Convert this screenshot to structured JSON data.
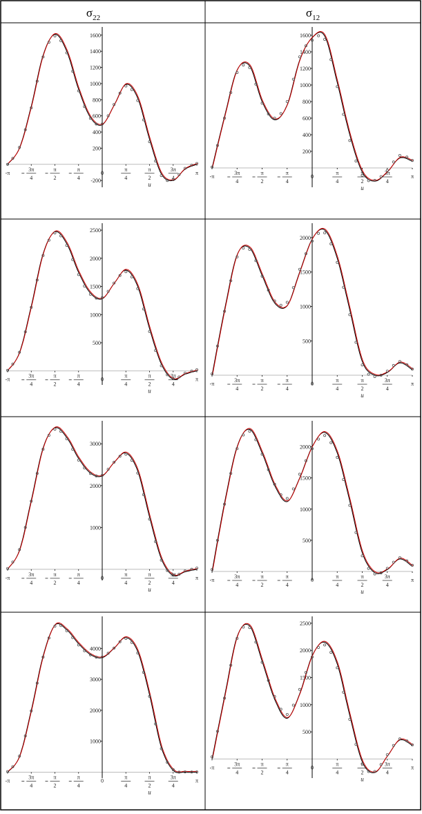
{
  "table": {
    "headers": [
      {
        "main": "σ",
        "sub": "22"
      },
      {
        "main": "σ",
        "sub": "12"
      }
    ]
  },
  "colors": {
    "model_curve": "#000000",
    "fit_curve": "#cc0000",
    "markers": "#555555",
    "axis": "#000000",
    "zero_line": "#bbbbbb",
    "border": "#000000"
  },
  "chart_data": [
    {
      "id": "r1-s22",
      "type": "line",
      "column": "σ22",
      "x_label": "u",
      "x_range": [
        -3.1416,
        3.1416
      ],
      "x_ticks": [
        {
          "v": -3.1416,
          "n": "-π"
        },
        {
          "v": -2.3562,
          "n": "3π",
          "d": "4",
          "neg": true
        },
        {
          "v": -1.5708,
          "n": "π",
          "d": "2",
          "neg": true
        },
        {
          "v": -0.7854,
          "n": "π",
          "d": "4",
          "neg": true
        },
        {
          "v": 0,
          "n": "0"
        },
        {
          "v": 0.7854,
          "n": "π",
          "d": "4"
        },
        {
          "v": 1.5708,
          "n": "π",
          "d": "2"
        },
        {
          "v": 2.3562,
          "n": "3π",
          "d": "4"
        },
        {
          "v": 3.1416,
          "n": "π"
        }
      ],
      "y_range": [
        -250,
        1650
      ],
      "y_ticks": [
        -200,
        200,
        400,
        600,
        800,
        1000,
        1200,
        1400,
        1600
      ],
      "x": [
        -3.1416,
        -2.7489,
        -2.3562,
        -1.9635,
        -1.5708,
        -1.1781,
        -0.7854,
        -0.3927,
        0,
        0.3927,
        0.7854,
        1.1781,
        1.5708,
        1.9635,
        2.3562,
        2.7489,
        3.1416
      ],
      "y": [
        0,
        200,
        720,
        1350,
        1610,
        1400,
        930,
        580,
        490,
        730,
        990,
        820,
        310,
        -120,
        -200,
        -60,
        0
      ],
      "markers": [
        0,
        210,
        700,
        1330,
        1590,
        1380,
        910,
        570,
        500,
        740,
        970,
        790,
        280,
        -140,
        -190,
        -50,
        10
      ]
    },
    {
      "id": "r1-s12",
      "type": "line",
      "column": "σ12",
      "x_label": "u",
      "x_range": [
        -3.1416,
        3.1416
      ],
      "x_ticks": [
        {
          "v": -3.1416,
          "n": "-π"
        },
        {
          "v": -2.3562,
          "n": "3π",
          "d": "4",
          "neg": true
        },
        {
          "v": -1.5708,
          "n": "π",
          "d": "2",
          "neg": true
        },
        {
          "v": -0.7854,
          "n": "π",
          "d": "4",
          "neg": true
        },
        {
          "v": 0,
          "n": "0"
        },
        {
          "v": 0.7854,
          "n": "π",
          "d": "4"
        },
        {
          "v": 1.5708,
          "n": "π",
          "d": "2"
        },
        {
          "v": 2.3562,
          "n": "3π",
          "d": "4"
        },
        {
          "v": 3.1416,
          "n": "π"
        }
      ],
      "y_range": [
        -200,
        1650
      ],
      "y_ticks": [
        200,
        400,
        600,
        800,
        1000,
        1200,
        1400,
        1600
      ],
      "x": [
        -3.1416,
        -2.7489,
        -2.3562,
        -1.9635,
        -1.5708,
        -1.1781,
        -0.7854,
        -0.3927,
        0,
        0.3927,
        0.7854,
        1.1781,
        1.5708,
        1.9635,
        2.3562,
        2.7489,
        3.1416
      ],
      "y": [
        0,
        620,
        1180,
        1230,
        800,
        580,
        760,
        1300,
        1570,
        1590,
        1030,
        400,
        -50,
        -160,
        -50,
        120,
        80
      ],
      "markers": [
        10,
        600,
        1150,
        1210,
        780,
        600,
        800,
        1340,
        1540,
        1550,
        980,
        330,
        -90,
        -150,
        -30,
        150,
        90
      ]
    },
    {
      "id": "r2-s22",
      "type": "line",
      "column": "σ22",
      "x_label": "u",
      "x_range": [
        -3.1416,
        3.1416
      ],
      "x_ticks": [
        {
          "v": -3.1416,
          "n": "-π"
        },
        {
          "v": -2.3562,
          "n": "3π",
          "d": "4",
          "neg": true
        },
        {
          "v": -1.5708,
          "n": "π",
          "d": "2",
          "neg": true
        },
        {
          "v": -0.7854,
          "n": "π",
          "d": "4",
          "neg": true
        },
        {
          "v": 0,
          "n": "0"
        },
        {
          "v": 0.7854,
          "n": "π",
          "d": "4"
        },
        {
          "v": 1.5708,
          "n": "π",
          "d": "2"
        },
        {
          "v": 2.3562,
          "n": "3π",
          "d": "4"
        },
        {
          "v": 3.1416,
          "n": "π"
        }
      ],
      "y_range": [
        -200,
        2550
      ],
      "y_ticks": [
        500,
        1000,
        1500,
        2000,
        2500
      ],
      "x": [
        -3.1416,
        -2.7489,
        -2.3562,
        -1.9635,
        -1.5708,
        -1.1781,
        -0.7854,
        -0.3927,
        0,
        0.3927,
        0.7854,
        1.1781,
        1.5708,
        1.9635,
        2.3562,
        2.7489,
        3.1416
      ],
      "y": [
        0,
        320,
        1150,
        2080,
        2470,
        2260,
        1750,
        1380,
        1280,
        1550,
        1790,
        1500,
        750,
        120,
        -150,
        -60,
        0
      ],
      "markers": [
        10,
        330,
        1130,
        2050,
        2450,
        2230,
        1710,
        1360,
        1300,
        1560,
        1760,
        1460,
        700,
        90,
        -140,
        -40,
        20
      ]
    },
    {
      "id": "r2-s12",
      "type": "line",
      "column": "σ12",
      "x_label": "u",
      "x_range": [
        -3.1416,
        3.1416
      ],
      "x_ticks": [
        {
          "v": -3.1416,
          "n": "-π"
        },
        {
          "v": -2.3562,
          "n": "3π",
          "d": "4",
          "neg": true
        },
        {
          "v": -1.5708,
          "n": "π",
          "d": "2",
          "neg": true
        },
        {
          "v": -0.7854,
          "n": "π",
          "d": "4",
          "neg": true
        },
        {
          "v": 0,
          "n": "0"
        },
        {
          "v": 0.7854,
          "n": "π",
          "d": "4"
        },
        {
          "v": 1.5708,
          "n": "π",
          "d": "2"
        },
        {
          "v": 2.3562,
          "n": "3π",
          "d": "4"
        },
        {
          "v": 3.1416,
          "n": "π"
        }
      ],
      "y_range": [
        -100,
        2150
      ],
      "y_ticks": [
        500,
        1000,
        1500,
        2000
      ],
      "x": [
        -3.1416,
        -2.7489,
        -2.3562,
        -1.9635,
        -1.5708,
        -1.1781,
        -0.7854,
        -0.3927,
        0,
        0.3927,
        0.7854,
        1.1781,
        1.5708,
        1.9635,
        2.3562,
        2.7489,
        3.1416
      ],
      "y": [
        0,
        950,
        1750,
        1850,
        1450,
        1050,
        1010,
        1500,
        1980,
        2110,
        1700,
        950,
        200,
        0,
        40,
        180,
        80
      ],
      "markers": [
        20,
        930,
        1720,
        1830,
        1440,
        1080,
        1060,
        1540,
        1950,
        2070,
        1640,
        880,
        150,
        -20,
        60,
        200,
        90
      ]
    },
    {
      "id": "r3-s22",
      "type": "line",
      "column": "σ22",
      "x_label": "u",
      "x_range": [
        -3.1416,
        3.1416
      ],
      "x_ticks": [
        {
          "v": -3.1416,
          "n": "-π"
        },
        {
          "v": -2.3562,
          "n": "3π",
          "d": "4",
          "neg": true
        },
        {
          "v": -1.5708,
          "n": "π",
          "d": "2",
          "neg": true
        },
        {
          "v": -0.7854,
          "n": "π",
          "d": "4",
          "neg": true
        },
        {
          "v": 0,
          "n": "0"
        },
        {
          "v": 0.7854,
          "n": "π",
          "d": "4"
        },
        {
          "v": 1.5708,
          "n": "π",
          "d": "2"
        },
        {
          "v": 2.3562,
          "n": "3π",
          "d": "4"
        },
        {
          "v": 3.1416,
          "n": "π"
        }
      ],
      "y_range": [
        -200,
        3450
      ],
      "y_ticks": [
        1000,
        2000,
        3000
      ],
      "x": [
        -3.1416,
        -2.7489,
        -2.3562,
        -1.9635,
        -1.5708,
        -1.1781,
        -0.7854,
        -0.3927,
        0,
        0.3927,
        0.7854,
        1.1781,
        1.5708,
        1.9635,
        2.3562,
        2.7489,
        3.1416
      ],
      "y": [
        0,
        450,
        1650,
        2900,
        3380,
        3150,
        2650,
        2300,
        2230,
        2550,
        2780,
        2350,
        1250,
        250,
        -150,
        -60,
        0
      ],
      "markers": [
        20,
        470,
        1630,
        2870,
        3350,
        3120,
        2610,
        2290,
        2250,
        2560,
        2750,
        2300,
        1200,
        220,
        -140,
        -40,
        30
      ]
    },
    {
      "id": "r3-s12",
      "type": "line",
      "column": "σ12",
      "x_label": "u",
      "x_range": [
        -3.1416,
        3.1416
      ],
      "x_ticks": [
        {
          "v": -3.1416,
          "n": "-π"
        },
        {
          "v": -2.3562,
          "n": "3π",
          "d": "4",
          "neg": true
        },
        {
          "v": -1.5708,
          "n": "π",
          "d": "2",
          "neg": true
        },
        {
          "v": -0.7854,
          "n": "π",
          "d": "4",
          "neg": true
        },
        {
          "v": 0,
          "n": "0"
        },
        {
          "v": 0.7854,
          "n": "π",
          "d": "4"
        },
        {
          "v": 1.5708,
          "n": "π",
          "d": "2"
        },
        {
          "v": 2.3562,
          "n": "3π",
          "d": "4"
        },
        {
          "v": 3.1416,
          "n": "π"
        }
      ],
      "y_range": [
        -100,
        2350
      ],
      "y_ticks": [
        500,
        1000,
        1500,
        2000
      ],
      "x": [
        -3.1416,
        -2.7489,
        -2.3562,
        -1.9635,
        -1.5708,
        -1.1781,
        -0.7854,
        -0.3927,
        0,
        0.3927,
        0.7854,
        1.1781,
        1.5708,
        1.9635,
        2.3562,
        2.7489,
        3.1416
      ],
      "y": [
        0,
        1100,
        2000,
        2280,
        1900,
        1380,
        1120,
        1500,
        2000,
        2230,
        1900,
        1130,
        300,
        -20,
        30,
        200,
        80
      ],
      "markers": [
        30,
        1080,
        1970,
        2250,
        1880,
        1400,
        1170,
        1560,
        1970,
        2180,
        1830,
        1060,
        250,
        -40,
        50,
        220,
        100
      ]
    },
    {
      "id": "r4-s22",
      "type": "line",
      "column": "σ22",
      "x_label": "u",
      "x_range": [
        -3.1416,
        3.1416
      ],
      "x_ticks": [
        {
          "v": -3.1416,
          "n": "-π"
        },
        {
          "v": -2.3562,
          "n": "3π",
          "d": "4",
          "neg": true
        },
        {
          "v": -1.5708,
          "n": "π",
          "d": "2",
          "neg": true
        },
        {
          "v": -0.7854,
          "n": "π",
          "d": "4",
          "neg": true
        },
        {
          "v": 0,
          "n": "0"
        },
        {
          "v": 0.7854,
          "n": "π",
          "d": "4"
        },
        {
          "v": 1.5708,
          "n": "π",
          "d": "2"
        },
        {
          "v": 2.3562,
          "n": "3π",
          "d": "4"
        },
        {
          "v": 3.1416,
          "n": "π"
        }
      ],
      "y_range": [
        -100,
        4900
      ],
      "y_ticks": [
        1000,
        2000,
        3000,
        4000
      ],
      "x": [
        -3.1416,
        -2.7489,
        -2.3562,
        -1.9635,
        -1.5708,
        -1.1781,
        -0.7854,
        -0.3927,
        0,
        0.3927,
        0.7854,
        1.1781,
        1.5708,
        1.9635,
        2.3562,
        2.7489,
        3.1416
      ],
      "y": [
        0,
        500,
        2000,
        3750,
        4750,
        4600,
        4150,
        3800,
        3700,
        4000,
        4350,
        3900,
        2500,
        800,
        60,
        0,
        0
      ],
      "markers": [
        20,
        520,
        1980,
        3720,
        4720,
        4570,
        4110,
        3790,
        3720,
        4010,
        4320,
        3850,
        2450,
        760,
        80,
        10,
        10
      ]
    },
    {
      "id": "r4-s12",
      "type": "line",
      "column": "σ12",
      "x_label": "u",
      "x_range": [
        -3.1416,
        3.1416
      ],
      "x_ticks": [
        {
          "v": -3.1416,
          "n": "-π"
        },
        {
          "v": -2.3562,
          "n": "3π",
          "d": "4",
          "neg": true
        },
        {
          "v": -1.5708,
          "n": "π",
          "d": "2",
          "neg": true
        },
        {
          "v": -0.7854,
          "n": "π",
          "d": "4",
          "neg": true
        },
        {
          "v": 0,
          "n": "0"
        },
        {
          "v": 0.7854,
          "n": "π",
          "d": "4"
        },
        {
          "v": 1.5708,
          "n": "π",
          "d": "2"
        },
        {
          "v": 2.3562,
          "n": "3π",
          "d": "4"
        },
        {
          "v": 3.1416,
          "n": "π"
        }
      ],
      "y_range": [
        -300,
        2550
      ],
      "y_ticks": [
        500,
        1000,
        1500,
        2000,
        2500
      ],
      "x": [
        -3.1416,
        -2.7489,
        -2.3562,
        -1.9635,
        -1.5708,
        -1.1781,
        -0.7854,
        -0.3927,
        0,
        0.3927,
        0.7854,
        1.1781,
        1.5708,
        1.9635,
        2.3562,
        2.7489,
        3.1416
      ],
      "y": [
        0,
        1150,
        2250,
        2450,
        1800,
        1100,
        750,
        1200,
        1900,
        2150,
        1750,
        800,
        -50,
        -250,
        50,
        350,
        250
      ],
      "markers": [
        40,
        1120,
        2220,
        2420,
        1780,
        1150,
        820,
        1280,
        1880,
        2100,
        1680,
        730,
        -90,
        -230,
        80,
        370,
        260
      ]
    }
  ]
}
